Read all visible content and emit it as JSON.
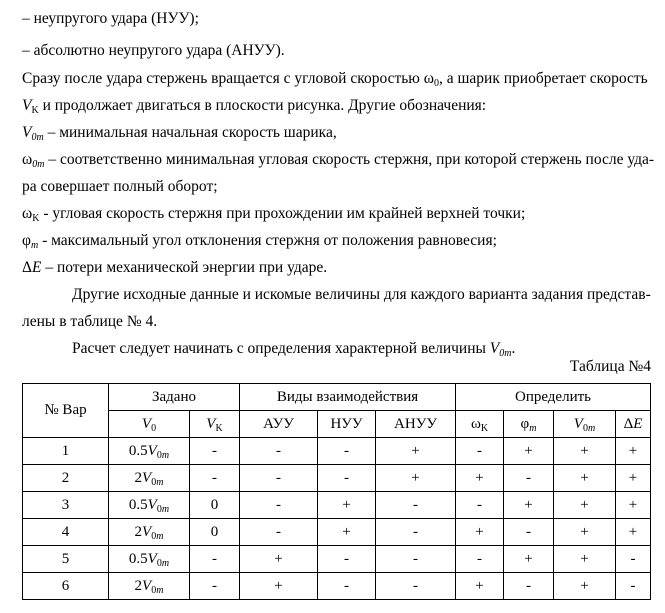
{
  "text": {
    "l1": "–  неупругого удара (НУУ);",
    "l2": "–  абсолютно неупругого удара (АНУУ).",
    "l3a": "Сразу после удара стержень вращается с угловой скоростью ω",
    "l3sub": "0",
    "l3b": ", а шарик приобретает скорость",
    "l4v": "V",
    "l4sub": "K",
    "l4b": " и продолжает двигаться в плоскости рисунка. Другие обозначения:",
    "l5v": "V",
    "l5sub": "0m",
    "l5b": " – минимальная начальная скорость шарика,",
    "l6a": "ω",
    "l6sub": "0m",
    "l6b": " – соответственно минимальная угловая скорость стержня, при которой стержень после уда-",
    "l7": "ра совершает полный оборот;",
    "l8a": "ω",
    "l8sub": "K",
    "l8b": " - угловая скорость стержня при прохождении им крайней верхней точки;",
    "l9a": "φ",
    "l9sub": "m",
    "l9b": " - максимальный угол отклонения стержня от положения равновесия;",
    "l10a": "Δ",
    "l10v": "E",
    "l10b": " – потери механической энергии при ударе.",
    "l11": "Другие исходные данные и искомые величины для каждого варианта задания представ-",
    "l12": "лены в таблице № 4.",
    "l13a": "Расчет следует начинать с определения характерной величины ",
    "l13v": "V",
    "l13sub": "0m",
    "l13b": "."
  },
  "table": {
    "caption": "Таблица №4",
    "h_var": "№ Вар",
    "h_given": "Задано",
    "h_types": "Виды взаимодействия",
    "h_find": "Определить",
    "sub": [
      "V0",
      "VK",
      "АУУ",
      "НУУ",
      "АНУУ",
      "ωK",
      "φm",
      "V0m",
      "ΔE"
    ],
    "rows": [
      [
        "1",
        "0.5V0m",
        "-",
        "-",
        "-",
        "+",
        "-",
        "+",
        "+",
        "+"
      ],
      [
        "2",
        "2V0m",
        "-",
        "-",
        "-",
        "+",
        "+",
        "-",
        "+",
        "+"
      ],
      [
        "3",
        "0.5V0m",
        "0",
        "-",
        "+",
        "-",
        "-",
        "+",
        "+",
        "+"
      ],
      [
        "4",
        "2V0m",
        "0",
        "-",
        "+",
        "-",
        "+",
        "-",
        "+",
        "+"
      ],
      [
        "5",
        "0.5V0m",
        "-",
        "+",
        "-",
        "-",
        "-",
        "+",
        "+",
        "-"
      ],
      [
        "6",
        "2V0m",
        "-",
        "+",
        "-",
        "-",
        "+",
        "-",
        "+",
        "-"
      ]
    ]
  }
}
